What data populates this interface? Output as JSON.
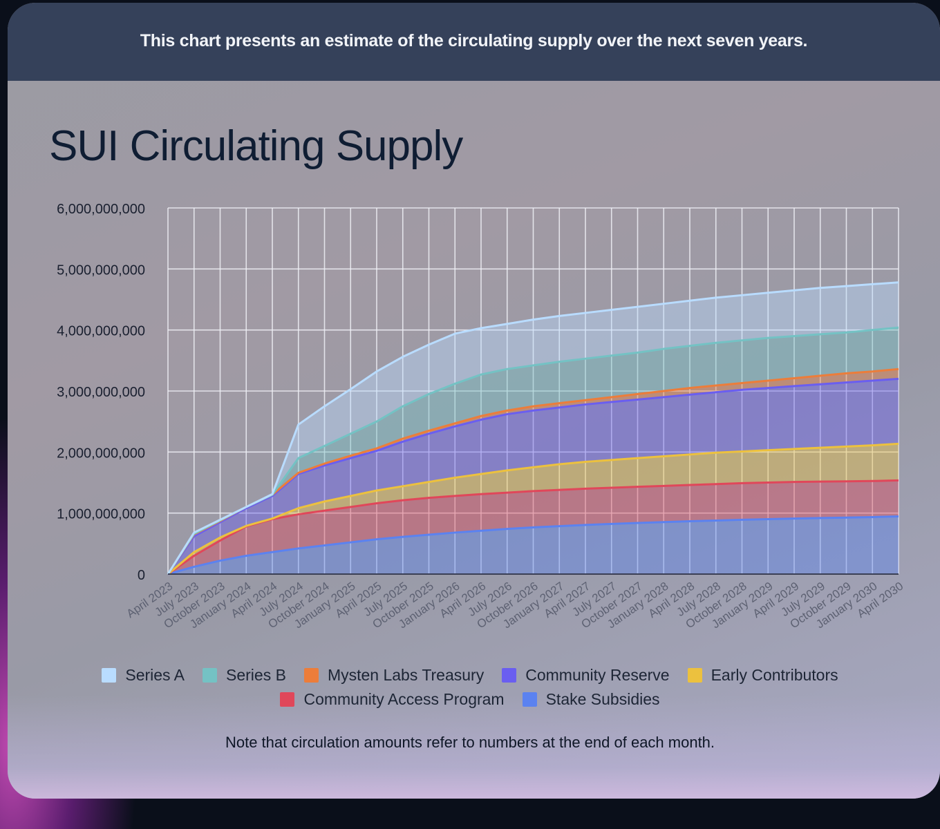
{
  "header": {
    "text": "This chart presents an estimate of the circulating supply over the next seven years."
  },
  "note": "Note that circulation amounts refer to numbers at the end of each month.",
  "chart_data": {
    "type": "area",
    "stacked": true,
    "title": "SUI Circulating Supply",
    "xlabel": "",
    "ylabel": "",
    "ylim": [
      0,
      6000000000
    ],
    "y_ticks": [
      0,
      1000000000,
      2000000000,
      3000000000,
      4000000000,
      5000000000,
      6000000000
    ],
    "y_tick_labels": [
      "0",
      "1,000,000,000",
      "2,000,000,000",
      "3,000,000,000",
      "4,000,000,000",
      "5,000,000,000",
      "6,000,000,000"
    ],
    "grid": true,
    "legend_position": "bottom",
    "categories": [
      "April 2023",
      "July 2023",
      "October 2023",
      "January 2024",
      "April 2024",
      "July 2024",
      "October 2024",
      "January 2025",
      "April 2025",
      "July 2025",
      "October 2025",
      "January 2026",
      "April 2026",
      "July 2026",
      "October 2026",
      "January 2027",
      "April 2027",
      "July 2027",
      "October 2027",
      "January 2028",
      "April 2028",
      "July 2028",
      "October 2028",
      "January 2029",
      "April 2029",
      "July 2029",
      "October 2029",
      "January 2030",
      "April 2030"
    ],
    "series": [
      {
        "name": "Stake Subsidies",
        "color": "#5b82f0",
        "cumulative": [
          0,
          120000000,
          220000000,
          300000000,
          360000000,
          420000000,
          470000000,
          520000000,
          570000000,
          610000000,
          645000000,
          680000000,
          710000000,
          740000000,
          765000000,
          785000000,
          805000000,
          822000000,
          838000000,
          852000000,
          866000000,
          878000000,
          890000000,
          900000000,
          910000000,
          918000000,
          926000000,
          934000000,
          945000000
        ]
      },
      {
        "name": "Community Access Program",
        "color": "#e0475a",
        "cumulative": [
          0,
          300000000,
          550000000,
          780000000,
          900000000,
          980000000,
          1040000000,
          1100000000,
          1160000000,
          1210000000,
          1250000000,
          1280000000,
          1310000000,
          1335000000,
          1360000000,
          1380000000,
          1400000000,
          1415000000,
          1430000000,
          1445000000,
          1460000000,
          1475000000,
          1490000000,
          1500000000,
          1510000000,
          1515000000,
          1520000000,
          1525000000,
          1535000000
        ]
      },
      {
        "name": "Early Contributors",
        "color": "#ecc13e",
        "cumulative": [
          0,
          360000000,
          600000000,
          790000000,
          910000000,
          1080000000,
          1190000000,
          1280000000,
          1370000000,
          1440000000,
          1510000000,
          1580000000,
          1640000000,
          1700000000,
          1750000000,
          1800000000,
          1840000000,
          1870000000,
          1900000000,
          1930000000,
          1960000000,
          1990000000,
          2010000000,
          2030000000,
          2050000000,
          2070000000,
          2090000000,
          2110000000,
          2135000000
        ]
      },
      {
        "name": "Community Reserve",
        "color": "#6a5ef0",
        "cumulative": [
          0,
          620000000,
          850000000,
          1080000000,
          1280000000,
          1640000000,
          1780000000,
          1900000000,
          2020000000,
          2170000000,
          2300000000,
          2420000000,
          2530000000,
          2620000000,
          2680000000,
          2730000000,
          2780000000,
          2820000000,
          2860000000,
          2900000000,
          2940000000,
          2980000000,
          3020000000,
          3050000000,
          3080000000,
          3110000000,
          3140000000,
          3170000000,
          3200000000
        ]
      },
      {
        "name": "Mysten Labs Treasury",
        "color": "#ec7d3a",
        "cumulative": [
          0,
          650000000,
          870000000,
          1100000000,
          1300000000,
          1660000000,
          1810000000,
          1940000000,
          2060000000,
          2220000000,
          2350000000,
          2470000000,
          2590000000,
          2680000000,
          2750000000,
          2800000000,
          2850000000,
          2900000000,
          2950000000,
          3000000000,
          3050000000,
          3090000000,
          3130000000,
          3170000000,
          3210000000,
          3250000000,
          3290000000,
          3320000000,
          3360000000
        ]
      },
      {
        "name": "Series B",
        "color": "#74c2c4",
        "cumulative": [
          0,
          660000000,
          880000000,
          1100000000,
          1300000000,
          1900000000,
          2100000000,
          2300000000,
          2500000000,
          2750000000,
          2950000000,
          3120000000,
          3270000000,
          3360000000,
          3420000000,
          3480000000,
          3530000000,
          3580000000,
          3630000000,
          3690000000,
          3740000000,
          3790000000,
          3830000000,
          3870000000,
          3900000000,
          3930000000,
          3960000000,
          4000000000,
          4040000000
        ]
      },
      {
        "name": "Series A",
        "color": "#b9dcff",
        "cumulative": [
          0,
          680000000,
          890000000,
          1100000000,
          1310000000,
          2450000000,
          2750000000,
          3030000000,
          3320000000,
          3560000000,
          3760000000,
          3940000000,
          4030000000,
          4100000000,
          4170000000,
          4230000000,
          4280000000,
          4330000000,
          4380000000,
          4430000000,
          4480000000,
          4530000000,
          4570000000,
          4610000000,
          4650000000,
          4690000000,
          4720000000,
          4750000000,
          4780000000
        ]
      }
    ]
  }
}
